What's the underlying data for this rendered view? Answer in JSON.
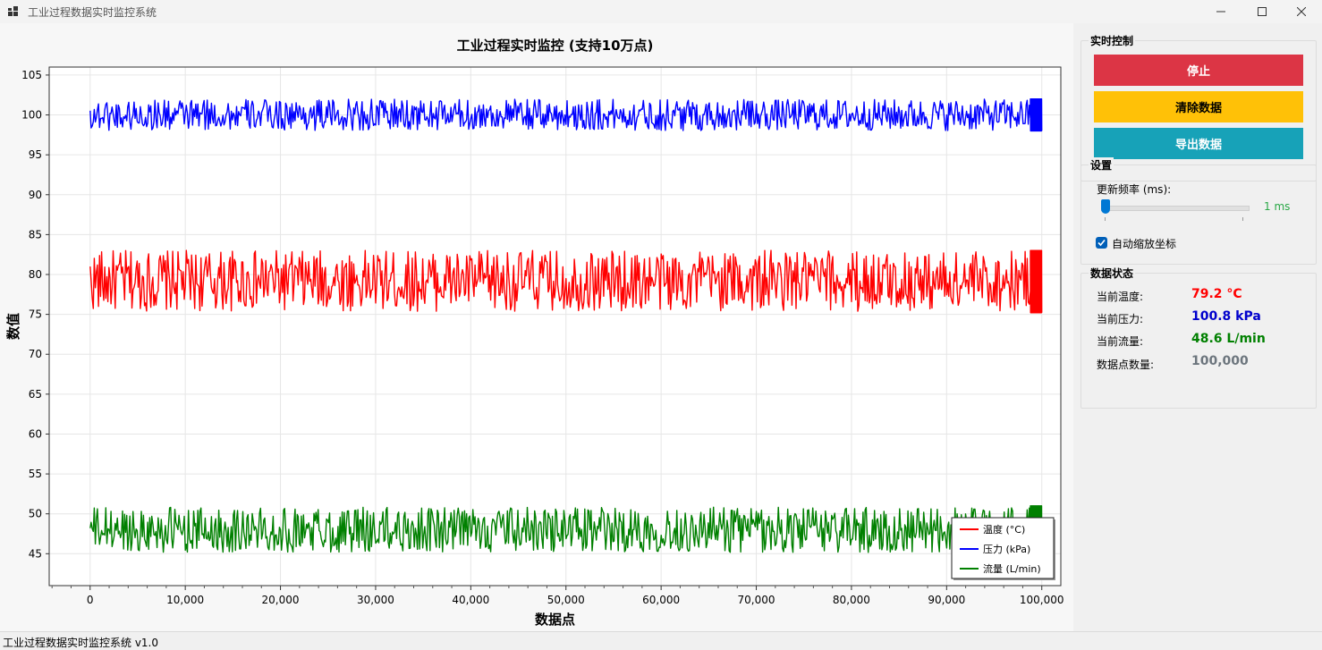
{
  "window": {
    "title": "工业过程数据实时监控系统",
    "app_icon": "app-grid-icon",
    "controls": [
      "minimize-icon",
      "maximize-icon",
      "close-icon"
    ]
  },
  "chart": {
    "title": "工业过程实时监控 (支持10万点)",
    "xlabel": "数据点",
    "ylabel": "数值",
    "legend": [
      {
        "label": "温度 (°C)",
        "color": "#ff0000"
      },
      {
        "label": "压力 (kPa)",
        "color": "#0000ff"
      },
      {
        "label": "流量 (L/min)",
        "color": "#008000"
      }
    ]
  },
  "chart_data": {
    "type": "line",
    "title": "工业过程实时监控 (支持10万点)",
    "xlabel": "数据点",
    "ylabel": "数值",
    "xlim": [
      -4300,
      102000
    ],
    "ylim": [
      41,
      106
    ],
    "x_ticks": [
      0,
      10000,
      20000,
      30000,
      40000,
      50000,
      60000,
      70000,
      80000,
      90000,
      100000
    ],
    "x_tick_labels": [
      "0",
      "10,000",
      "20,000",
      "30,000",
      "40,000",
      "50,000",
      "60,000",
      "70,000",
      "80,000",
      "90,000",
      "100,000"
    ],
    "y_ticks": [
      45,
      50,
      55,
      60,
      65,
      70,
      75,
      80,
      85,
      90,
      95,
      100,
      105
    ],
    "y_tick_labels": [
      "45",
      "50",
      "55",
      "60",
      "65",
      "70",
      "75",
      "80",
      "85",
      "90",
      "95",
      "100",
      "105"
    ],
    "grid": true,
    "legend_position": "bottom-right",
    "series": [
      {
        "name": "温度 (°C)",
        "color": "#ff0000",
        "x_range": [
          0,
          100000
        ],
        "center": 79.2,
        "min": 75.2,
        "max": 83.0
      },
      {
        "name": "压力 (kPa)",
        "color": "#0000ff",
        "x_range": [
          0,
          100000
        ],
        "center": 100.0,
        "min": 98.0,
        "max": 102.0
      },
      {
        "name": "流量 (L/min)",
        "color": "#008000",
        "x_range": [
          0,
          100000
        ],
        "center": 48.0,
        "min": 45.2,
        "max": 51.0
      }
    ]
  },
  "controls": {
    "group_title": "实时控制",
    "stop_label": "停止",
    "clear_label": "清除数据",
    "export_label": "导出数据",
    "stop_color": "#dc3545",
    "clear_color": "#ffc107",
    "export_color": "#17a2b8"
  },
  "settings": {
    "group_title": "设置",
    "freq_label": "更新频率 (ms):",
    "freq_value": "1 ms",
    "freq_level": 0,
    "autoscale_label": "自动缩放坐标",
    "autoscale_checked": true
  },
  "status": {
    "group_title": "数据状态",
    "temp_label": "当前温度:",
    "temp_value": "79.2 °C",
    "temp_color": "#ff0000",
    "pressure_label": "当前压力:",
    "pressure_value": "100.8 kPa",
    "pressure_color": "#0000cc",
    "flow_label": "当前流量:",
    "flow_value": "48.6 L/min",
    "flow_color": "#008000",
    "count_label": "数据点数量:",
    "count_value": "100,000",
    "count_color": "#6c757d"
  },
  "statusbar": {
    "text": "工业过程数据实时监控系统 v1.0"
  }
}
